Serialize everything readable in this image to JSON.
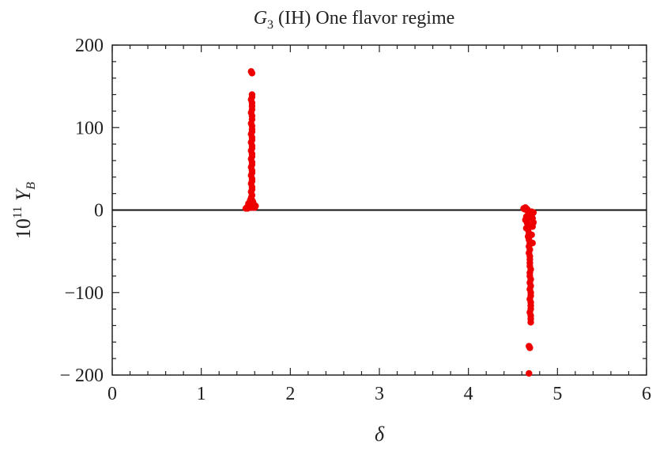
{
  "chart_data": {
    "type": "scatter",
    "title": {
      "main": "G",
      "sub": "3",
      "rest": " (IH) One flavor regime"
    },
    "xlabel": "δ",
    "ylabel": {
      "base": "10",
      "exp": "11",
      "var": " Y",
      "sub": "B"
    },
    "xlim": [
      0,
      6
    ],
    "ylim": [
      -200,
      200
    ],
    "x_ticks": [
      0,
      1,
      2,
      3,
      4,
      5,
      6
    ],
    "x_tick_labels": [
      "0",
      "1",
      "2",
      "3",
      "4",
      "5",
      "6"
    ],
    "y_ticks": [
      -200,
      -100,
      0,
      100,
      200
    ],
    "y_tick_labels": [
      "− 200",
      "−100",
      "0",
      "100",
      "200"
    ],
    "zero_line": true,
    "grid": false,
    "marker_color": "#ee0000",
    "series": [
      {
        "points": [
          [
            1.5,
            2
          ],
          [
            1.51,
            3
          ],
          [
            1.52,
            2
          ],
          [
            1.53,
            4
          ],
          [
            1.54,
            3
          ],
          [
            1.55,
            5
          ],
          [
            1.56,
            4
          ],
          [
            1.57,
            3
          ],
          [
            1.58,
            5
          ],
          [
            1.59,
            4
          ],
          [
            1.6,
            3
          ],
          [
            1.61,
            5
          ],
          [
            1.56,
            8
          ],
          [
            1.57,
            12
          ],
          [
            1.56,
            15
          ],
          [
            1.57,
            18
          ],
          [
            1.56,
            22
          ],
          [
            1.57,
            25
          ],
          [
            1.57,
            28
          ],
          [
            1.56,
            32
          ],
          [
            1.57,
            35
          ],
          [
            1.57,
            38
          ],
          [
            1.56,
            42
          ],
          [
            1.57,
            45
          ],
          [
            1.57,
            48
          ],
          [
            1.56,
            52
          ],
          [
            1.57,
            55
          ],
          [
            1.57,
            58
          ],
          [
            1.56,
            62
          ],
          [
            1.57,
            65
          ],
          [
            1.57,
            68
          ],
          [
            1.56,
            72
          ],
          [
            1.57,
            75
          ],
          [
            1.57,
            78
          ],
          [
            1.56,
            82
          ],
          [
            1.57,
            85
          ],
          [
            1.57,
            88
          ],
          [
            1.56,
            92
          ],
          [
            1.57,
            95
          ],
          [
            1.57,
            98
          ],
          [
            1.57,
            102
          ],
          [
            1.56,
            105
          ],
          [
            1.57,
            110
          ],
          [
            1.57,
            114
          ],
          [
            1.56,
            118
          ],
          [
            1.57,
            122
          ],
          [
            1.57,
            126
          ],
          [
            1.57,
            130
          ],
          [
            1.56,
            134
          ],
          [
            1.57,
            137
          ],
          [
            1.57,
            140
          ],
          [
            1.56,
            168
          ],
          [
            1.57,
            166
          ],
          [
            1.53,
            8
          ],
          [
            1.54,
            6
          ],
          [
            1.58,
            10
          ],
          [
            1.59,
            7
          ],
          [
            1.55,
            12
          ],
          [
            4.62,
            2
          ],
          [
            4.63,
            1
          ],
          [
            4.64,
            3
          ],
          [
            4.65,
            2
          ],
          [
            4.66,
            1
          ],
          [
            4.67,
            -2
          ],
          [
            4.68,
            -4
          ],
          [
            4.69,
            -3
          ],
          [
            4.7,
            -5
          ],
          [
            4.71,
            -2
          ],
          [
            4.72,
            -4
          ],
          [
            4.73,
            -3
          ],
          [
            4.65,
            -8
          ],
          [
            4.66,
            -12
          ],
          [
            4.66,
            -16
          ],
          [
            4.67,
            -20
          ],
          [
            4.67,
            -24
          ],
          [
            4.68,
            -28
          ],
          [
            4.67,
            -32
          ],
          [
            4.68,
            -36
          ],
          [
            4.69,
            -40
          ],
          [
            4.68,
            -44
          ],
          [
            4.69,
            -48
          ],
          [
            4.68,
            -52
          ],
          [
            4.69,
            -56
          ],
          [
            4.69,
            -60
          ],
          [
            4.69,
            -64
          ],
          [
            4.69,
            -68
          ],
          [
            4.7,
            -72
          ],
          [
            4.69,
            -76
          ],
          [
            4.69,
            -80
          ],
          [
            4.7,
            -84
          ],
          [
            4.69,
            -88
          ],
          [
            4.7,
            -92
          ],
          [
            4.69,
            -96
          ],
          [
            4.7,
            -100
          ],
          [
            4.7,
            -104
          ],
          [
            4.69,
            -108
          ],
          [
            4.7,
            -112
          ],
          [
            4.7,
            -116
          ],
          [
            4.7,
            -120
          ],
          [
            4.69,
            -124
          ],
          [
            4.7,
            -128
          ],
          [
            4.7,
            -132
          ],
          [
            4.7,
            -136
          ],
          [
            4.72,
            -10
          ],
          [
            4.72,
            -20
          ],
          [
            4.73,
            -15
          ],
          [
            4.71,
            -30
          ],
          [
            4.72,
            -40
          ],
          [
            4.64,
            -12
          ],
          [
            4.65,
            -22
          ],
          [
            4.68,
            -165
          ],
          [
            4.69,
            -167
          ],
          [
            4.68,
            -198
          ]
        ]
      }
    ]
  }
}
